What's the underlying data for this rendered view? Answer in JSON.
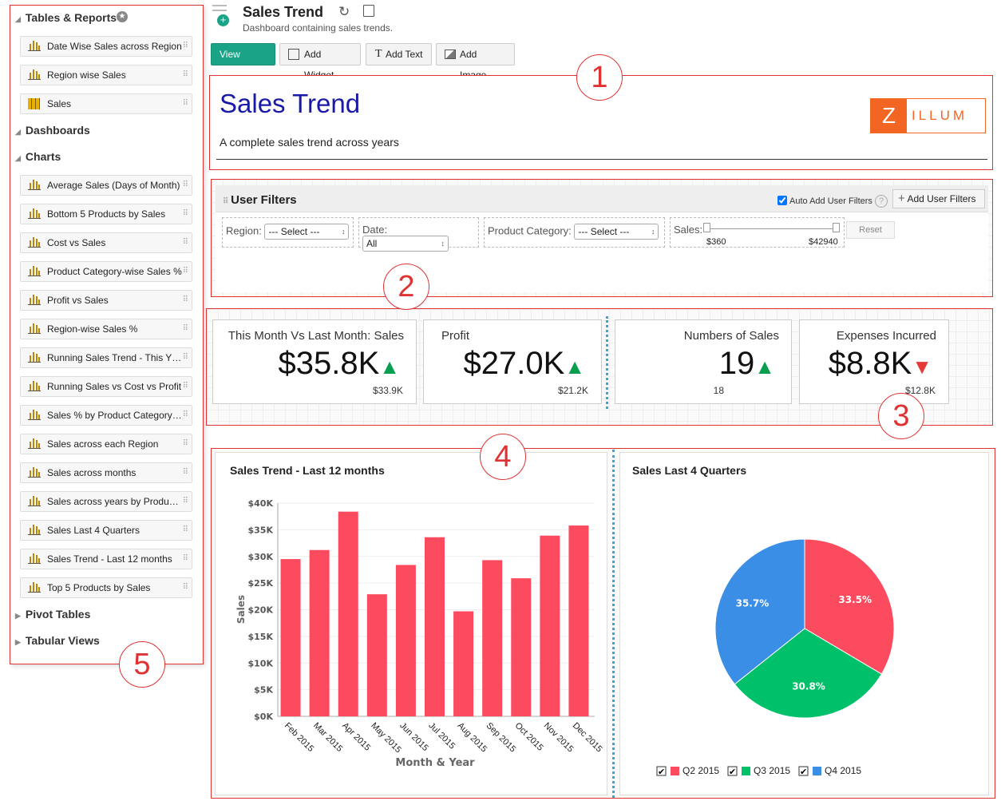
{
  "sidebar": {
    "section_tables": "Tables & Reports",
    "tables": [
      {
        "label": "Date Wise Sales across Region",
        "icon": "bar-chart-icon"
      },
      {
        "label": "Region wise Sales",
        "icon": "bar-chart-icon"
      },
      {
        "label": "Sales",
        "icon": "table-icon"
      }
    ],
    "section_dashboards": "Dashboards",
    "section_charts": "Charts",
    "charts": [
      "Average Sales (Days of Month)",
      "Bottom 5 Products by Sales",
      "Cost vs Sales",
      "Product Category-wise Sales %",
      "Profit vs Sales",
      "Region-wise Sales %",
      "Running Sales Trend - This Y…",
      "Running Sales vs Cost vs Profit",
      "Sales % by Product Category…",
      "Sales across each Region",
      "Sales across months",
      "Sales across years by Produ…",
      "Sales Last 4 Quarters",
      "Sales Trend - Last 12 months",
      "Top 5 Products by Sales"
    ],
    "section_pivot": "Pivot Tables",
    "section_tabular": "Tabular Views"
  },
  "header": {
    "title": "Sales Trend",
    "subtitle": "Dashboard containing sales trends."
  },
  "toolbar": {
    "view_mode": "View Mode",
    "add_widget": "Add Widget",
    "add_text": "Add Text",
    "add_image": "Add Image"
  },
  "banner": {
    "title": "Sales Trend",
    "description": "A complete sales trend across years",
    "logo_text": "Z ILLUM"
  },
  "filters": {
    "title": "User Filters",
    "auto_add": "Auto Add User Filters",
    "auto_add_checked": true,
    "add_button": "Add User Filters",
    "region_label": "Region:",
    "region_value": "--- Select ---",
    "date_label": "Date:",
    "date_value": "All",
    "category_label": "Product Category:",
    "category_value": "--- Select ---",
    "sales_label": "Sales:",
    "sales_min": "$360",
    "sales_max": "$42940",
    "reset": "Reset"
  },
  "kpis": [
    {
      "title": "This Month Vs Last Month: Sales",
      "value": "$35.8K",
      "trend": "up",
      "previous": "$33.9K"
    },
    {
      "title": "Profit",
      "value": "$27.0K",
      "trend": "up",
      "previous": "$21.2K"
    },
    {
      "title": "Numbers of Sales",
      "value": "19",
      "trend": "up",
      "previous": "18"
    },
    {
      "title": "Expenses Incurred",
      "value": "$8.8K",
      "trend": "down",
      "previous": "$12.8K"
    }
  ],
  "annotations": [
    "1",
    "2",
    "3",
    "4",
    "5"
  ],
  "colors": {
    "accent": "#1aa386",
    "bar": "#fc4a5e",
    "q2": "#fc4a5e",
    "q3": "#00c16a",
    "q4": "#3a8ee6",
    "annotation": "#dd3333"
  },
  "chart_data": [
    {
      "type": "bar",
      "title": "Sales Trend - Last 12 months",
      "xlabel": "Month & Year",
      "ylabel": "Sales",
      "ylim": [
        0,
        40000
      ],
      "yticks": [
        "$0K",
        "$5K",
        "$10K",
        "$15K",
        "$20K",
        "$25K",
        "$30K",
        "$35K",
        "$40K"
      ],
      "categories": [
        "Feb 2015",
        "Mar 2015",
        "Apr 2015",
        "May 2015",
        "Jun 2015",
        "Jul 2015",
        "Aug 2015",
        "Sep 2015",
        "Oct 2015",
        "Nov 2015",
        "Dec 2015"
      ],
      "values": [
        29500,
        31200,
        38400,
        22900,
        28400,
        33600,
        19700,
        29300,
        25900,
        33900,
        35800
      ],
      "grid": true
    },
    {
      "type": "pie",
      "title": "Sales Last 4 Quarters",
      "series": [
        {
          "name": "Q2 2015",
          "value": 33.5,
          "label": "33.5%"
        },
        {
          "name": "Q3 2015",
          "value": 30.8,
          "label": "30.8%"
        },
        {
          "name": "Q4 2015",
          "value": 35.7,
          "label": "35.7%"
        }
      ],
      "legend": "bottom"
    }
  ]
}
